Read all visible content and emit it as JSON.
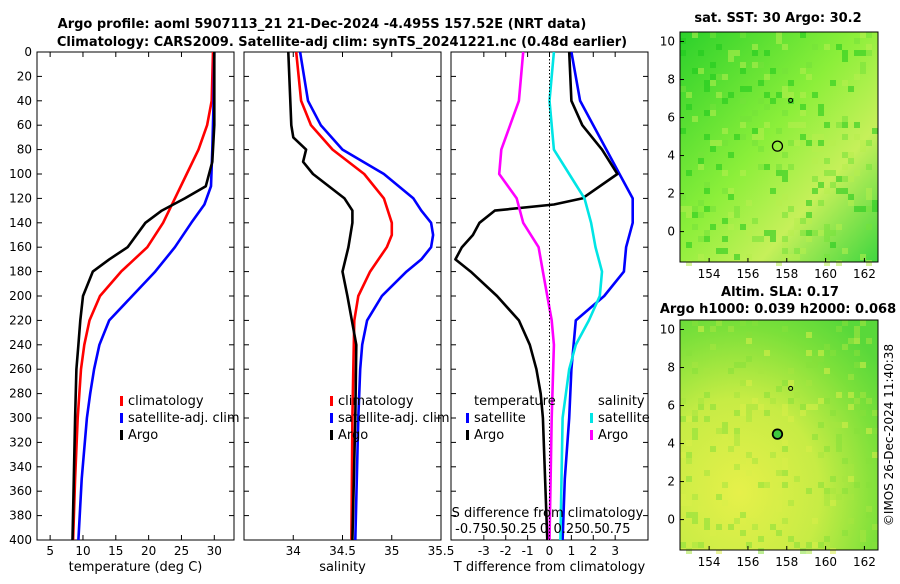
{
  "title_line1": "Argo profile: aoml 5907113_21 21-Dec-2024 -4.495S 157.52E (NRT data)",
  "title_line2": "Climatology: CARS2009. Satellite-adj clim: synTS_20241221.nc (0.48d earlier)",
  "timestamp": "©IMOS 26-Dec-2024 11:40:38",
  "colors": {
    "climatology": "#ff0000",
    "satellite": "#0000ff",
    "argo": "#000000",
    "sat_salinity": "#00e5e5",
    "argo_salinity": "#ff00ff"
  },
  "chart_data": [
    {
      "type": "line",
      "name": "temperature-profile",
      "xlabel": "temperature (deg C)",
      "ylabel": "",
      "xlim": [
        3,
        33
      ],
      "ylim": [
        0,
        400
      ],
      "xticks": [
        "5",
        "10",
        "15",
        "20",
        "25",
        "30"
      ],
      "yticks": [
        "0",
        "20",
        "40",
        "60",
        "80",
        "100",
        "120",
        "140",
        "160",
        "180",
        "200",
        "220",
        "240",
        "260",
        "280",
        "300",
        "320",
        "340",
        "360",
        "380",
        "400"
      ],
      "legend": [
        "climatology",
        "satellite-adj. clim",
        "Argo"
      ],
      "series": [
        {
          "name": "climatology",
          "color": "#ff0000",
          "depth": [
            0,
            40,
            60,
            80,
            100,
            120,
            140,
            160,
            180,
            200,
            220,
            240,
            260,
            300,
            350,
            400
          ],
          "values": [
            29.8,
            29.6,
            28.9,
            27.6,
            25.8,
            24.0,
            22.2,
            19.8,
            15.8,
            12.6,
            11.0,
            10.2,
            9.7,
            9.2,
            8.8,
            8.5
          ]
        },
        {
          "name": "satellite-adj. clim",
          "color": "#0000ff",
          "depth": [
            0,
            40,
            80,
            110,
            125,
            140,
            160,
            180,
            200,
            220,
            240,
            260,
            280,
            300,
            350,
            400
          ],
          "values": [
            30.0,
            29.9,
            29.7,
            29.5,
            28.5,
            26.5,
            24.0,
            21.0,
            17.5,
            14.0,
            12.5,
            11.7,
            11.1,
            10.6,
            9.8,
            9.3
          ]
        },
        {
          "name": "Argo",
          "color": "#000000",
          "depth": [
            0,
            60,
            90,
            110,
            120,
            130,
            140,
            160,
            170,
            180,
            200,
            220,
            240,
            260,
            300,
            350,
            400
          ],
          "values": [
            30.0,
            30.0,
            29.7,
            28.7,
            25.5,
            22.0,
            19.5,
            16.8,
            14.0,
            11.5,
            10.0,
            9.6,
            9.3,
            9.0,
            8.8,
            8.6,
            8.4
          ]
        }
      ]
    },
    {
      "type": "line",
      "name": "salinity-profile",
      "xlabel": "salinity",
      "xlim": [
        33.5,
        35.5
      ],
      "ylim": [
        0,
        400
      ],
      "xticks": [
        "34",
        "34.5",
        "35",
        "35.5"
      ],
      "legend": [
        "climatology",
        "satellite-adj. clim",
        "Argo"
      ],
      "series": [
        {
          "name": "climatology",
          "color": "#ff0000",
          "depth": [
            0,
            40,
            60,
            80,
            100,
            120,
            140,
            150,
            160,
            180,
            200,
            220,
            260,
            300,
            400
          ],
          "values": [
            34.03,
            34.08,
            34.18,
            34.4,
            34.72,
            34.92,
            35.0,
            35.0,
            34.95,
            34.78,
            34.66,
            34.62,
            34.61,
            34.6,
            34.59
          ]
        },
        {
          "name": "satellite-adj. clim",
          "color": "#0000ff",
          "depth": [
            0,
            40,
            60,
            80,
            100,
            120,
            130,
            140,
            150,
            160,
            170,
            180,
            200,
            220,
            240,
            260,
            300,
            400
          ],
          "values": [
            34.07,
            34.15,
            34.28,
            34.5,
            34.92,
            35.22,
            35.3,
            35.4,
            35.42,
            35.4,
            35.3,
            35.15,
            34.9,
            34.75,
            34.7,
            34.68,
            34.66,
            34.63
          ]
        },
        {
          "name": "Argo",
          "color": "#000000",
          "depth": [
            0,
            20,
            40,
            60,
            70,
            80,
            90,
            100,
            120,
            130,
            140,
            160,
            180,
            200,
            240,
            300,
            400
          ],
          "values": [
            33.95,
            33.96,
            33.97,
            33.98,
            34.0,
            34.13,
            34.1,
            34.2,
            34.52,
            34.6,
            34.6,
            34.56,
            34.5,
            34.55,
            34.64,
            34.63,
            34.6
          ]
        }
      ]
    },
    {
      "type": "line",
      "name": "difference-profile",
      "xlabel": "T difference from climatology",
      "top_axis_label": "S difference from climatology",
      "top_xticks": [
        "-0.75",
        "-0.5",
        "-0.25",
        "0",
        "0.25",
        "0.5",
        "0.75"
      ],
      "xlim": [
        -4.5,
        4.5
      ],
      "ylim": [
        0,
        400
      ],
      "xticks": [
        "-3",
        "-2",
        "-1",
        "0",
        "1",
        "2",
        "3"
      ],
      "legend_temperature": [
        "temperature",
        "satellite",
        "Argo"
      ],
      "legend_salinity": [
        "salinity",
        "satellite",
        "Argo"
      ],
      "series": [
        {
          "name": "T satellite",
          "color": "#0000ff",
          "depth": [
            0,
            40,
            80,
            100,
            120,
            140,
            160,
            180,
            200,
            220,
            260,
            300,
            350,
            400
          ],
          "values": [
            1.0,
            1.4,
            2.6,
            3.2,
            3.8,
            3.8,
            3.5,
            3.4,
            2.5,
            1.2,
            1.0,
            0.9,
            0.7,
            0.6
          ]
        },
        {
          "name": "T Argo",
          "color": "#000000",
          "depth": [
            0,
            40,
            60,
            80,
            100,
            120,
            125,
            130,
            140,
            150,
            160,
            170,
            180,
            200,
            220,
            240,
            260,
            280,
            300,
            350,
            400
          ],
          "values": [
            0.9,
            1.0,
            1.5,
            2.4,
            3.1,
            1.5,
            0.2,
            -2.5,
            -3.2,
            -3.5,
            -4.0,
            -4.3,
            -3.6,
            -2.4,
            -1.4,
            -0.9,
            -0.6,
            -0.4,
            -0.3,
            -0.2,
            -0.1
          ]
        },
        {
          "name": "S satellite",
          "color": "#00e5e5",
          "depth": [
            0,
            40,
            80,
            100,
            120,
            140,
            160,
            180,
            200,
            220,
            240,
            260,
            300,
            400
          ],
          "values": [
            0.2,
            0.0,
            0.2,
            0.9,
            1.6,
            1.9,
            2.1,
            2.4,
            2.3,
            1.8,
            1.2,
            0.9,
            0.6,
            0.5
          ]
        },
        {
          "name": "S Argo",
          "color": "#ff00ff",
          "depth": [
            0,
            40,
            60,
            80,
            100,
            120,
            140,
            160,
            180,
            200,
            220,
            240,
            300,
            400
          ],
          "values": [
            -1.2,
            -1.4,
            -1.8,
            -2.2,
            -2.3,
            -1.5,
            -1.2,
            -0.5,
            -0.3,
            -0.1,
            0.1,
            0.2,
            0.1,
            0.0
          ]
        }
      ]
    },
    {
      "type": "heatmap",
      "name": "sst-map",
      "title": "sat. SST: 30 Argo: 30.2",
      "xlim": [
        152.5,
        162.7
      ],
      "ylim": [
        -1.6,
        10.5
      ],
      "xticks": [
        "154",
        "156",
        "158",
        "160",
        "162"
      ],
      "yticks": [
        "0",
        "2",
        "4",
        "6",
        "8",
        "10"
      ],
      "argo_position": [
        157.52,
        4.495
      ]
    },
    {
      "type": "heatmap",
      "name": "sla-map",
      "title": "Altim. SLA: 0.17",
      "subtitle": "Argo h1000: 0.039 h2000: 0.068",
      "xlim": [
        152.5,
        162.7
      ],
      "ylim": [
        -1.6,
        10.5
      ],
      "xticks": [
        "154",
        "156",
        "158",
        "160",
        "162"
      ],
      "yticks": [
        "0",
        "2",
        "4",
        "6",
        "8",
        "10"
      ],
      "argo_position": [
        157.52,
        4.495
      ]
    }
  ]
}
